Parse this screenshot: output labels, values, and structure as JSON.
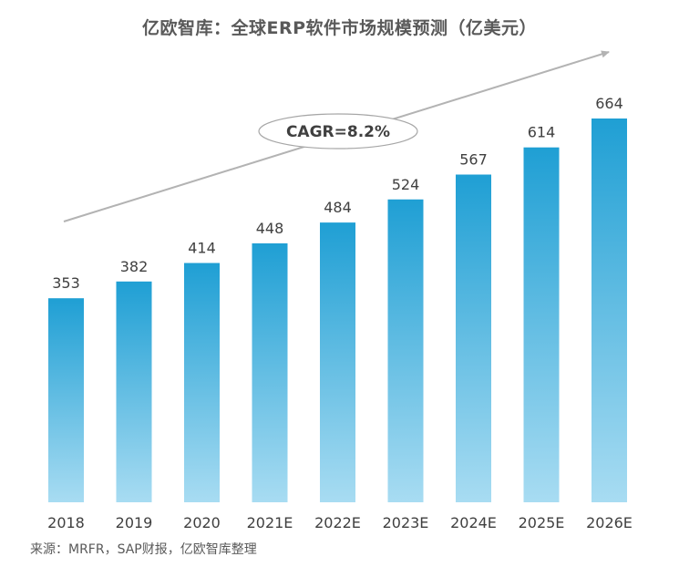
{
  "chart_data": {
    "type": "bar",
    "title": "亿欧智库：全球ERP软件市场规模预测（亿美元）",
    "categories": [
      "2018",
      "2019",
      "2020",
      "2021E",
      "2022E",
      "2023E",
      "2024E",
      "2025E",
      "2026E"
    ],
    "values": [
      353,
      382,
      414,
      448,
      484,
      524,
      567,
      614,
      664
    ],
    "annotation": "CAGR=8.2%",
    "source": "来源：MRFR，SAP财报，亿欧智库整理",
    "grid": false,
    "legend": "none",
    "colors": {
      "bar_top": "#1f9fd4",
      "bar_bottom": "#a8dcf2",
      "arrow": "#b3b3b3"
    }
  }
}
